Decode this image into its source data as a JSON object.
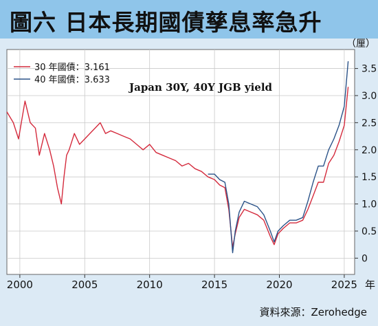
{
  "title": "圖六  日本長期國債孳息率急升",
  "source_note": "資料來源：Zerohedge",
  "chart_data": {
    "type": "line",
    "annotation": "Japan 30Y, 40Y JGB yield",
    "y_unit_label": "（厘）",
    "x_unit_label": "年",
    "xlim": [
      1999.0,
      2025.8
    ],
    "ylim": [
      -0.3,
      3.85
    ],
    "x_ticks": [
      2000,
      2005,
      2010,
      2015,
      2020,
      2025
    ],
    "y_ticks": [
      0,
      0.5,
      1.0,
      1.5,
      2.0,
      2.5,
      3.0,
      3.5
    ],
    "y_tick_labels": [
      "0",
      "0.5",
      "1.0",
      "1.5",
      "2.0",
      "2.5",
      "3.0",
      "3.5"
    ],
    "series": [
      {
        "name": "30 年國債：3.161",
        "color": "#d42a3c",
        "x": [
          1999.0,
          1999.5,
          1999.9,
          2000.4,
          2000.8,
          2001.2,
          2001.5,
          2001.9,
          2002.3,
          2002.6,
          2002.9,
          2003.2,
          2003.4,
          2003.6,
          2003.8,
          2004.2,
          2004.6,
          2005.0,
          2005.4,
          2005.8,
          2006.2,
          2006.6,
          2007.0,
          2007.5,
          2008.0,
          2008.5,
          2009.0,
          2009.5,
          2010.0,
          2010.5,
          2011.0,
          2011.5,
          2012.0,
          2012.5,
          2013.0,
          2013.5,
          2014.0,
          2014.5,
          2015.0,
          2015.4,
          2015.8,
          2016.1,
          2016.4,
          2016.6,
          2016.9,
          2017.3,
          2017.8,
          2018.3,
          2018.8,
          2019.3,
          2019.6,
          2019.9,
          2020.3,
          2020.8,
          2021.3,
          2021.8,
          2022.2,
          2022.6,
          2023.0,
          2023.4,
          2023.8,
          2024.2,
          2024.6,
          2025.0,
          2025.3
        ],
        "values": [
          2.7,
          2.5,
          2.2,
          2.9,
          2.5,
          2.4,
          1.9,
          2.3,
          2.0,
          1.7,
          1.3,
          1.0,
          1.5,
          1.9,
          2.0,
          2.3,
          2.1,
          2.2,
          2.3,
          2.4,
          2.5,
          2.3,
          2.35,
          2.3,
          2.25,
          2.2,
          2.1,
          2.0,
          2.1,
          1.95,
          1.9,
          1.85,
          1.8,
          1.7,
          1.75,
          1.65,
          1.6,
          1.5,
          1.45,
          1.35,
          1.3,
          0.9,
          0.2,
          0.45,
          0.75,
          0.9,
          0.85,
          0.8,
          0.7,
          0.4,
          0.25,
          0.45,
          0.55,
          0.65,
          0.65,
          0.7,
          0.9,
          1.15,
          1.4,
          1.4,
          1.75,
          1.9,
          2.15,
          2.45,
          3.161
        ]
      },
      {
        "name": "40 年國債：3.633",
        "color": "#2a5288",
        "x": [
          2014.5,
          2015.0,
          2015.4,
          2015.8,
          2016.1,
          2016.4,
          2016.6,
          2016.9,
          2017.3,
          2017.8,
          2018.3,
          2018.8,
          2019.3,
          2019.6,
          2019.9,
          2020.3,
          2020.8,
          2021.3,
          2021.8,
          2022.2,
          2022.6,
          2023.0,
          2023.4,
          2023.8,
          2024.2,
          2024.6,
          2025.0,
          2025.3
        ],
        "values": [
          1.55,
          1.55,
          1.45,
          1.4,
          1.0,
          0.1,
          0.5,
          0.85,
          1.05,
          1.0,
          0.95,
          0.8,
          0.5,
          0.3,
          0.5,
          0.6,
          0.7,
          0.7,
          0.75,
          1.05,
          1.4,
          1.7,
          1.7,
          2.0,
          2.2,
          2.45,
          2.8,
          3.633
        ]
      }
    ]
  }
}
